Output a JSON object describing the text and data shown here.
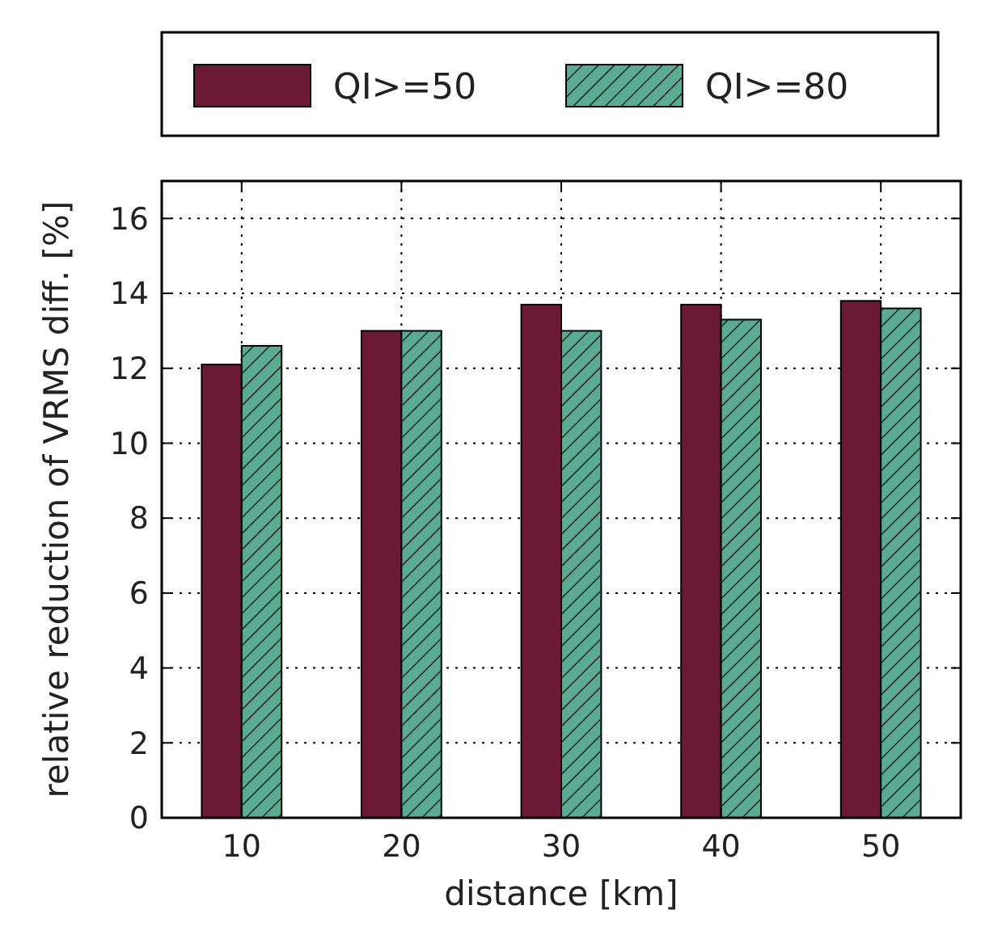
{
  "chart_data": {
    "type": "bar",
    "xlabel": "distance [km]",
    "ylabel": "relative reduction of VRMS diff. [%]",
    "categories": [
      "10",
      "20",
      "30",
      "40",
      "50"
    ],
    "series": [
      {
        "name": "QI>=50",
        "color": "#6b1a35",
        "values": [
          12.1,
          13.0,
          13.7,
          13.7,
          13.8
        ]
      },
      {
        "name": "QI>=80",
        "color": "#5aaa94",
        "values": [
          12.6,
          13.0,
          13.0,
          13.3,
          13.6
        ]
      }
    ],
    "ylim": [
      0,
      17
    ],
    "yticks": [
      0,
      2,
      4,
      6,
      8,
      10,
      12,
      14,
      16
    ],
    "grid": true,
    "legend": "top"
  }
}
